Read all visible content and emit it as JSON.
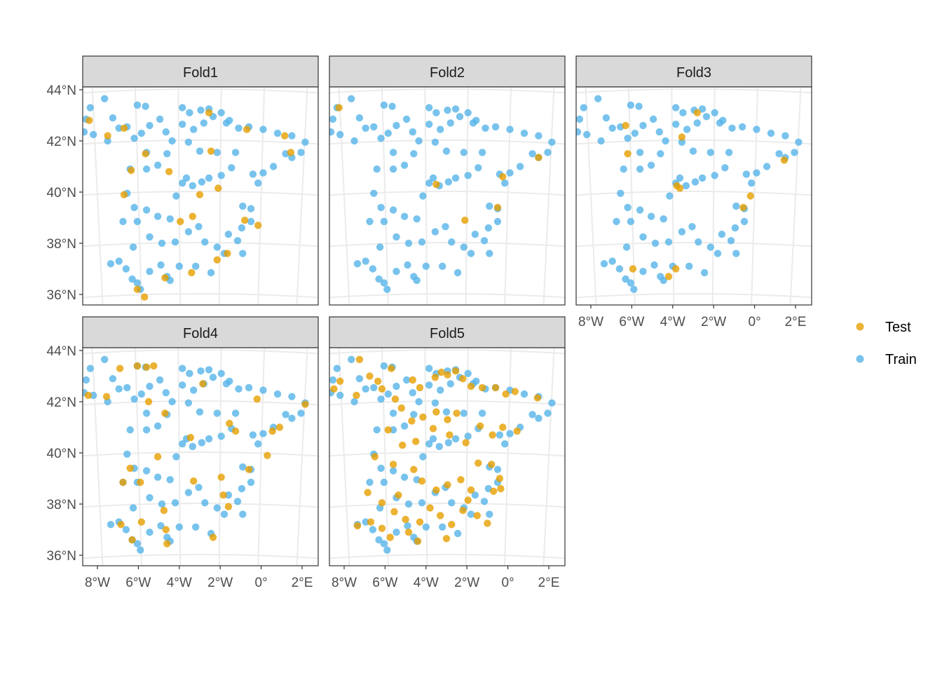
{
  "colors": {
    "test": "#E69F00",
    "train": "#56B4E9",
    "strip_fill": "#D9D9D9",
    "panel_border": "#333333",
    "grid": "#EBEBEB"
  },
  "legend": {
    "position": "right",
    "items": [
      {
        "key": "test",
        "label": "Test"
      },
      {
        "key": "train",
        "label": "Train"
      }
    ]
  },
  "chart_data": {
    "type": "scatter",
    "facets": [
      "Fold1",
      "Fold2",
      "Fold3",
      "Fold4",
      "Fold5"
    ],
    "x_ticks": [
      {
        "value": -8,
        "label": "8°W"
      },
      {
        "value": -6,
        "label": "6°W"
      },
      {
        "value": -4,
        "label": "4°W"
      },
      {
        "value": -2,
        "label": "2°W"
      },
      {
        "value": 0,
        "label": "0°"
      },
      {
        "value": 2,
        "label": "2°E"
      }
    ],
    "y_ticks": [
      {
        "value": 36,
        "label": "36°N"
      },
      {
        "value": 38,
        "label": "38°N"
      },
      {
        "value": 40,
        "label": "40°N"
      },
      {
        "value": 42,
        "label": "42°N"
      },
      {
        "value": 44,
        "label": "44°N"
      }
    ],
    "xlim": [
      -8.6,
      2.6
    ],
    "ylim": [
      35.6,
      44.0
    ],
    "grid": true,
    "stations": [
      [
        -8.35,
        43.3
      ],
      [
        -8.55,
        42.85
      ],
      [
        -8.65,
        42.35
      ],
      [
        -8.2,
        42.25
      ],
      [
        -7.65,
        43.65
      ],
      [
        -7.5,
        42.0
      ],
      [
        -7.25,
        42.9
      ],
      [
        -6.95,
        42.5
      ],
      [
        -6.55,
        42.55
      ],
      [
        -6.05,
        43.4
      ],
      [
        -5.65,
        43.35
      ],
      [
        -5.45,
        42.6
      ],
      [
        -5.85,
        42.3
      ],
      [
        -6.2,
        42.1
      ],
      [
        -5.6,
        41.55
      ],
      [
        -4.95,
        42.85
      ],
      [
        -4.65,
        42.35
      ],
      [
        -4.35,
        42.0
      ],
      [
        -3.85,
        43.3
      ],
      [
        -3.85,
        42.65
      ],
      [
        -3.5,
        43.1
      ],
      [
        -3.3,
        42.45
      ],
      [
        -2.95,
        43.2
      ],
      [
        -2.8,
        42.7
      ],
      [
        -2.55,
        43.25
      ],
      [
        -2.35,
        42.95
      ],
      [
        -1.95,
        43.1
      ],
      [
        -1.7,
        42.7
      ],
      [
        -1.55,
        42.8
      ],
      [
        -1.1,
        42.5
      ],
      [
        -0.6,
        42.55
      ],
      [
        0.1,
        42.45
      ],
      [
        0.8,
        42.3
      ],
      [
        1.5,
        42.2
      ],
      [
        2.15,
        41.95
      ],
      [
        1.95,
        41.55
      ],
      [
        1.5,
        41.35
      ],
      [
        1.2,
        41.5
      ],
      [
        0.6,
        41.0
      ],
      [
        0.1,
        40.75
      ],
      [
        -0.4,
        40.7
      ],
      [
        -0.15,
        40.35
      ],
      [
        -1.25,
        41.55
      ],
      [
        -2.15,
        41.55
      ],
      [
        -3.0,
        41.6
      ],
      [
        -3.55,
        41.95
      ],
      [
        -4.6,
        41.5
      ],
      [
        -5.05,
        41.05
      ],
      [
        -5.6,
        40.9
      ],
      [
        -6.4,
        40.9
      ],
      [
        -6.55,
        39.95
      ],
      [
        -6.2,
        39.4
      ],
      [
        -6.75,
        38.85
      ],
      [
        -6.05,
        38.85
      ],
      [
        -5.6,
        39.3
      ],
      [
        -5.05,
        39.05
      ],
      [
        -4.45,
        38.95
      ],
      [
        -4.15,
        39.85
      ],
      [
        -3.65,
        40.55
      ],
      [
        -3.85,
        40.35
      ],
      [
        -3.35,
        40.25
      ],
      [
        -2.9,
        40.4
      ],
      [
        -2.55,
        40.55
      ],
      [
        -1.95,
        40.65
      ],
      [
        -1.45,
        40.95
      ],
      [
        -0.9,
        39.45
      ],
      [
        -0.5,
        39.35
      ],
      [
        -0.5,
        38.85
      ],
      [
        -0.95,
        38.6
      ],
      [
        -1.15,
        38.1
      ],
      [
        -1.6,
        38.35
      ],
      [
        -2.15,
        37.85
      ],
      [
        -2.75,
        38.05
      ],
      [
        -3.05,
        38.65
      ],
      [
        -3.55,
        38.45
      ],
      [
        -4.2,
        38.05
      ],
      [
        -4.85,
        38.0
      ],
      [
        -5.45,
        38.25
      ],
      [
        -6.25,
        37.85
      ],
      [
        -6.95,
        37.3
      ],
      [
        -7.35,
        37.2
      ],
      [
        -6.6,
        37.0
      ],
      [
        -6.3,
        36.6
      ],
      [
        -5.9,
        36.2
      ],
      [
        -5.45,
        36.9
      ],
      [
        -4.6,
        36.7
      ],
      [
        -4.0,
        37.1
      ],
      [
        -3.2,
        37.1
      ],
      [
        -2.45,
        36.85
      ],
      [
        -1.8,
        37.6
      ],
      [
        -0.9,
        37.6
      ],
      [
        -4.9,
        37.15
      ],
      [
        -6.05,
        36.45
      ],
      [
        -4.45,
        36.55
      ]
    ],
    "series": [
      {
        "name": "Test",
        "fold_index": []
      },
      {
        "name": "Train",
        "fold_index": []
      }
    ],
    "test_points": {
      "Fold1": [
        [
          -8.4,
          42.8
        ],
        [
          -7.5,
          42.2
        ],
        [
          -6.7,
          42.5
        ],
        [
          -6.35,
          40.85
        ],
        [
          -6.7,
          39.9
        ],
        [
          -5.65,
          41.5
        ],
        [
          -4.5,
          40.8
        ],
        [
          -3.35,
          39.05
        ],
        [
          -3.95,
          38.85
        ],
        [
          -2.45,
          41.6
        ],
        [
          -2.1,
          40.15
        ],
        [
          -3.0,
          39.9
        ],
        [
          -0.8,
          38.9
        ],
        [
          -0.15,
          38.7
        ],
        [
          -1.65,
          37.6
        ],
        [
          -2.15,
          37.35
        ],
        [
          1.15,
          42.2
        ],
        [
          1.45,
          41.55
        ],
        [
          -0.7,
          42.45
        ],
        [
          -6.05,
          36.2
        ],
        [
          -5.7,
          35.9
        ],
        [
          -4.7,
          36.65
        ],
        [
          -3.4,
          36.85
        ],
        [
          -2.55,
          43.1
        ]
      ],
      "Fold2": [
        [
          -8.25,
          43.3
        ],
        [
          -3.5,
          40.3
        ],
        [
          -2.1,
          38.9
        ],
        [
          -0.5,
          39.4
        ],
        [
          1.5,
          41.35
        ],
        [
          -0.25,
          40.6
        ]
      ],
      "Fold3": [
        [
          -6.2,
          41.5
        ],
        [
          -6.3,
          42.6
        ],
        [
          -5.95,
          37.0
        ],
        [
          -3.8,
          40.25
        ],
        [
          -3.65,
          40.15
        ],
        [
          -3.55,
          42.15
        ],
        [
          -2.8,
          43.1
        ],
        [
          -0.55,
          39.4
        ],
        [
          -0.2,
          39.85
        ],
        [
          1.45,
          41.25
        ],
        [
          -3.85,
          37.0
        ],
        [
          -4.2,
          36.7
        ]
      ],
      "Fold4": [
        [
          -8.45,
          42.25
        ],
        [
          -7.55,
          42.2
        ],
        [
          -6.9,
          43.3
        ],
        [
          -6.05,
          43.4
        ],
        [
          -5.6,
          43.35
        ],
        [
          -5.25,
          43.4
        ],
        [
          -5.5,
          42.0
        ],
        [
          -4.7,
          41.55
        ],
        [
          -1.55,
          41.15
        ],
        [
          -1.25,
          40.85
        ],
        [
          -3.45,
          40.6
        ],
        [
          -2.85,
          42.7
        ],
        [
          -0.2,
          42.1
        ],
        [
          0.9,
          41.0
        ],
        [
          0.55,
          40.85
        ],
        [
          -0.6,
          39.35
        ],
        [
          2.15,
          41.9
        ],
        [
          -6.75,
          38.85
        ],
        [
          -6.4,
          39.4
        ],
        [
          -5.9,
          38.85
        ],
        [
          -5.05,
          39.85
        ],
        [
          -4.75,
          37.75
        ],
        [
          -4.65,
          37.0
        ],
        [
          -4.6,
          36.45
        ],
        [
          -6.3,
          36.6
        ],
        [
          -6.85,
          37.2
        ],
        [
          -5.85,
          37.3
        ],
        [
          -3.3,
          38.9
        ],
        [
          -1.85,
          38.35
        ],
        [
          -1.6,
          37.9
        ],
        [
          -2.35,
          36.7
        ],
        [
          -1.95,
          39.05
        ],
        [
          0.3,
          39.9
        ]
      ],
      "Fold5": [
        [
          -8.2,
          42.8
        ],
        [
          -8.5,
          42.5
        ],
        [
          -7.4,
          42.25
        ],
        [
          -7.25,
          43.65
        ],
        [
          -6.75,
          43.0
        ],
        [
          -6.35,
          42.8
        ],
        [
          -5.7,
          43.3
        ],
        [
          -4.65,
          42.85
        ],
        [
          -4.3,
          42.55
        ],
        [
          -3.55,
          42.95
        ],
        [
          -3.25,
          43.15
        ],
        [
          -2.95,
          43.05
        ],
        [
          -2.55,
          43.2
        ],
        [
          -2.2,
          42.9
        ],
        [
          -1.8,
          42.6
        ],
        [
          -1.25,
          42.55
        ],
        [
          -0.6,
          42.55
        ],
        [
          -0.1,
          42.3
        ],
        [
          0.35,
          42.4
        ],
        [
          1.45,
          42.15
        ],
        [
          -6.15,
          42.5
        ],
        [
          -5.5,
          42.1
        ],
        [
          -5.2,
          41.75
        ],
        [
          -4.7,
          41.25
        ],
        [
          -4.15,
          41.4
        ],
        [
          -3.5,
          41.6
        ],
        [
          -2.95,
          41.3
        ],
        [
          -2.5,
          41.55
        ],
        [
          -1.35,
          41.05
        ],
        [
          -0.75,
          40.7
        ],
        [
          -0.25,
          41.0
        ],
        [
          0.45,
          40.85
        ],
        [
          -5.85,
          40.9
        ],
        [
          -5.15,
          40.3
        ],
        [
          -4.5,
          40.45
        ],
        [
          -3.65,
          40.95
        ],
        [
          -2.85,
          40.7
        ],
        [
          -2.05,
          40.4
        ],
        [
          -1.45,
          39.6
        ],
        [
          -0.8,
          39.55
        ],
        [
          -0.4,
          39.0
        ],
        [
          -6.5,
          39.85
        ],
        [
          -5.6,
          39.55
        ],
        [
          -4.6,
          39.35
        ],
        [
          -4.2,
          38.9
        ],
        [
          -3.5,
          38.55
        ],
        [
          -2.95,
          38.75
        ],
        [
          -2.3,
          38.95
        ],
        [
          -1.8,
          38.55
        ],
        [
          -6.15,
          38.05
        ],
        [
          -5.55,
          37.7
        ],
        [
          -5.0,
          37.4
        ],
        [
          -4.3,
          37.3
        ],
        [
          -3.8,
          37.85
        ],
        [
          -3.3,
          37.55
        ],
        [
          -2.75,
          37.2
        ],
        [
          -2.2,
          37.75
        ],
        [
          -1.5,
          37.55
        ],
        [
          -1.0,
          37.25
        ],
        [
          -6.7,
          37.3
        ],
        [
          -7.35,
          37.15
        ],
        [
          -6.15,
          37.05
        ],
        [
          -5.75,
          36.7
        ],
        [
          -4.85,
          36.9
        ],
        [
          -4.4,
          36.55
        ],
        [
          -3.0,
          36.65
        ],
        [
          -1.95,
          38.15
        ],
        [
          -0.7,
          38.5
        ],
        [
          -0.35,
          38.6
        ],
        [
          -6.85,
          38.45
        ],
        [
          -5.35,
          38.35
        ]
      ]
    }
  }
}
